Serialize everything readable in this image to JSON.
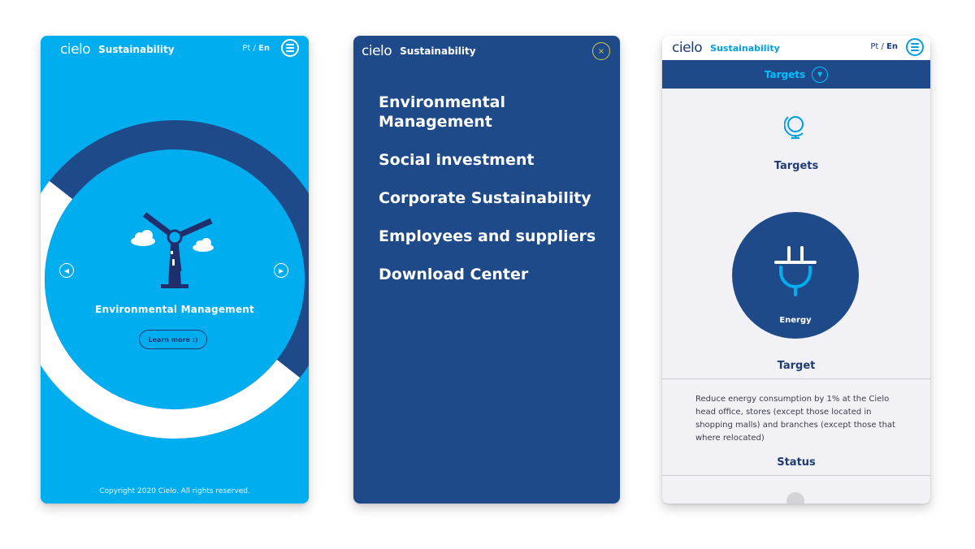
{
  "screen1": {
    "header": {
      "logo_text": "cielo",
      "brand": "Sustainability",
      "lang_pt": "Pt",
      "lang_sep": " / ",
      "lang_en": "En"
    },
    "slide": {
      "title": "Environmental Management",
      "cta": "Learn more :)"
    },
    "footer": {
      "copyright": "Copyright 2020 Cielo. All rights reserved."
    }
  },
  "screen2": {
    "header": {
      "logo_text": "cielo",
      "brand": "Sustainability",
      "close_icon": "×"
    },
    "menu": [
      {
        "label": "Environmental Management"
      },
      {
        "label": "Social investment"
      },
      {
        "label": "Corporate Sustainability"
      },
      {
        "label": "Employees and suppliers"
      },
      {
        "label": "Download Center"
      }
    ]
  },
  "screen3": {
    "header": {
      "logo_text": "cielo",
      "brand": "Sustainability",
      "lang_pt": "Pt",
      "lang_sep": " / ",
      "lang_en": "En"
    },
    "section_bar": {
      "label": "Targets"
    },
    "section_title": "Targets",
    "energy": {
      "label": "Energy"
    },
    "target": {
      "title": "Target",
      "text": "Reduce energy consumption by 1% at the Cielo head office, stores (except those located in shopping malls) and branches (except those that where relocated)"
    },
    "status": {
      "title": "Status"
    }
  },
  "colors": {
    "sky_blue": "#00adef",
    "navy": "#1f4a8a",
    "light_bg": "#f2f2f6",
    "accent_yellow": "#d6c84a"
  }
}
